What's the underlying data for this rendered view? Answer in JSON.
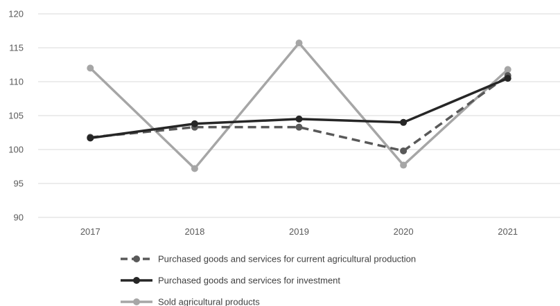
{
  "chart_data": {
    "type": "line",
    "title": "",
    "xlabel": "",
    "ylabel": "",
    "categories": [
      "2017",
      "2018",
      "2019",
      "2020",
      "2021"
    ],
    "ylim": [
      90,
      120
    ],
    "yticks": [
      90,
      95,
      100,
      105,
      110,
      115,
      120
    ],
    "grid": true,
    "legend_position": "bottom",
    "series": [
      {
        "name": "Purchased goods and services for current agricultural production",
        "values": [
          101.8,
          103.3,
          103.3,
          99.8,
          110.9
        ],
        "color": "#595959",
        "dash": "dashed"
      },
      {
        "name": "Purchased goods and services for investment",
        "values": [
          101.7,
          103.8,
          104.5,
          104.0,
          110.5
        ],
        "color": "#262626",
        "dash": "solid"
      },
      {
        "name": "Sold agricultural products",
        "values": [
          112.0,
          97.2,
          115.7,
          97.7,
          111.8
        ],
        "color": "#a6a6a6",
        "dash": "solid"
      }
    ]
  }
}
